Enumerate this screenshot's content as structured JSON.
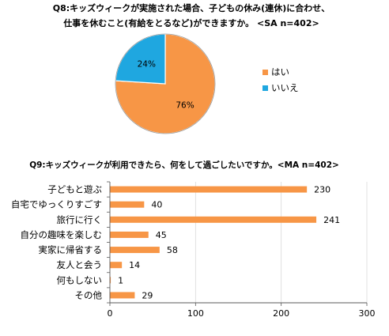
{
  "chart_data": [
    {
      "type": "pie",
      "title_lines": [
        "Q8:キッズウィークが実施された場合、子どもの休み(連休)に合わせ、",
        "仕事を休むこと(有給をとるなど)ができますか。 <SA n=402>"
      ],
      "slices": [
        {
          "label": "はい",
          "value": 76,
          "value_label": "76%",
          "color": "#F79646"
        },
        {
          "label": "いいえ",
          "value": 24,
          "value_label": "24%",
          "color": "#1FA7E0"
        }
      ],
      "legend": "right"
    },
    {
      "type": "bar",
      "orientation": "horizontal",
      "title": "Q9:キッズウィークが利用できたら、何をして過ごしたいですか。<MA n=402>",
      "categories": [
        "子どもと遊ぶ",
        "自宅でゆっくりすごす",
        "旅行に行く",
        "自分の趣味を楽しむ",
        "実家に帰省する",
        "友人と会う",
        "何もしない",
        "その他"
      ],
      "values": [
        230,
        40,
        241,
        45,
        58,
        14,
        1,
        29
      ],
      "color": "#F79646",
      "xlim": [
        0,
        300
      ],
      "xticks": [
        0,
        100,
        200,
        300
      ]
    }
  ]
}
